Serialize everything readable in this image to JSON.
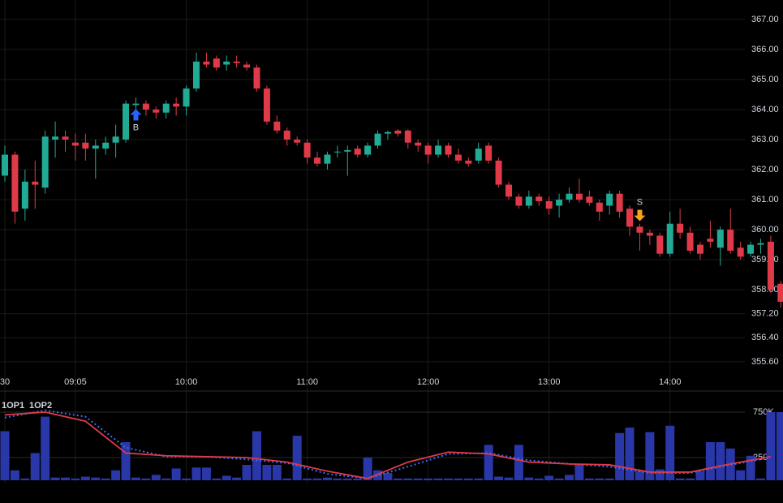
{
  "chart_data": [
    {
      "type": "candlestick",
      "categories": [
        "30",
        null,
        null,
        null,
        null,
        null,
        null,
        "09:05",
        null,
        null,
        null,
        null,
        null,
        null,
        null,
        null,
        null,
        null,
        "10:00",
        null,
        null,
        null,
        null,
        null,
        null,
        null,
        null,
        null,
        null,
        null,
        "11:00",
        null,
        null,
        null,
        null,
        null,
        null,
        null,
        null,
        null,
        null,
        null,
        "12:00",
        null,
        null,
        null,
        null,
        null,
        null,
        null,
        null,
        null,
        null,
        null,
        "13:00",
        null,
        null,
        null,
        null,
        null,
        null,
        null,
        null,
        null,
        null,
        null,
        "14:00",
        null,
        null,
        null,
        null,
        null,
        null,
        null,
        null,
        null,
        null,
        null
      ],
      "open": [
        361.8,
        362.5,
        360.7,
        361.6,
        361.4,
        363.0,
        363.1,
        362.9,
        362.9,
        362.7,
        362.7,
        362.9,
        363.0,
        364.15,
        364.2,
        364.0,
        363.9,
        364.2,
        364.1,
        364.7,
        365.6,
        365.7,
        365.5,
        365.6,
        365.5,
        365.4,
        364.7,
        363.6,
        363.3,
        363.0,
        362.9,
        362.4,
        362.2,
        362.6,
        362.6,
        362.7,
        362.5,
        362.8,
        363.2,
        363.3,
        363.3,
        362.9,
        362.8,
        362.5,
        362.8,
        362.5,
        362.3,
        362.3,
        362.8,
        362.3,
        361.5,
        361.1,
        360.8,
        361.1,
        360.95,
        360.8,
        361.0,
        361.2,
        361.1,
        360.9,
        360.8,
        361.2,
        360.7,
        360.1,
        359.9,
        359.8,
        359.2,
        360.2,
        359.9,
        359.5,
        359.7,
        359.4,
        360.0,
        359.4,
        359.2,
        359.5,
        359.6,
        358.2
      ],
      "high": [
        362.8,
        362.6,
        362.0,
        362.3,
        363.3,
        363.6,
        363.3,
        363.2,
        363.2,
        363.0,
        363.1,
        363.5,
        364.3,
        364.4,
        364.3,
        364.1,
        364.3,
        364.4,
        364.8,
        365.9,
        365.9,
        365.8,
        365.8,
        365.8,
        365.6,
        365.5,
        364.8,
        363.8,
        363.4,
        363.1,
        363.0,
        362.6,
        362.6,
        362.8,
        362.8,
        362.8,
        362.9,
        363.3,
        363.3,
        363.35,
        363.35,
        363.0,
        362.9,
        363.0,
        362.9,
        362.7,
        362.4,
        362.9,
        362.9,
        362.4,
        361.6,
        361.2,
        361.3,
        361.2,
        361.1,
        361.2,
        361.4,
        361.7,
        361.3,
        361.0,
        361.3,
        361.3,
        360.8,
        360.2,
        360.0,
        359.9,
        360.6,
        360.7,
        360.1,
        359.6,
        360.3,
        360.1,
        360.7,
        359.6,
        359.6,
        359.7,
        359.8,
        358.3
      ],
      "low": [
        361.6,
        360.2,
        360.3,
        360.7,
        361.2,
        362.4,
        362.6,
        362.3,
        362.3,
        361.7,
        362.5,
        362.4,
        362.9,
        364.0,
        363.8,
        363.7,
        363.7,
        363.8,
        363.8,
        364.6,
        365.4,
        365.3,
        365.3,
        365.4,
        365.3,
        364.6,
        363.5,
        363.2,
        362.8,
        362.8,
        362.2,
        362.1,
        362.0,
        362.4,
        361.8,
        362.4,
        362.4,
        362.7,
        363.0,
        363.1,
        362.7,
        362.6,
        362.2,
        362.4,
        362.4,
        362.2,
        362.1,
        362.2,
        362.2,
        361.4,
        361.0,
        360.7,
        360.7,
        360.8,
        360.5,
        360.4,
        360.9,
        360.9,
        360.8,
        360.3,
        360.5,
        360.4,
        359.8,
        359.3,
        359.5,
        359.1,
        359.1,
        359.7,
        359.2,
        359.0,
        359.4,
        358.8,
        359.2,
        359.0,
        359.1,
        359.2,
        357.9,
        357.4
      ],
      "close": [
        362.5,
        360.6,
        361.6,
        361.5,
        363.1,
        363.1,
        363.0,
        362.8,
        362.7,
        362.8,
        362.9,
        363.1,
        364.2,
        364.2,
        364.0,
        363.9,
        364.2,
        364.1,
        364.7,
        365.6,
        365.5,
        365.4,
        365.6,
        365.55,
        365.4,
        364.7,
        363.6,
        363.3,
        363.0,
        362.9,
        362.4,
        362.2,
        362.5,
        362.6,
        362.65,
        362.5,
        362.8,
        363.2,
        363.25,
        363.2,
        362.9,
        362.8,
        362.5,
        362.8,
        362.5,
        362.3,
        362.2,
        362.7,
        362.3,
        361.5,
        361.1,
        360.8,
        361.1,
        360.95,
        360.7,
        361.0,
        361.2,
        361.0,
        360.9,
        360.6,
        361.2,
        360.6,
        360.1,
        359.9,
        359.8,
        359.2,
        360.2,
        359.9,
        359.3,
        359.2,
        359.6,
        360.0,
        359.3,
        359.1,
        359.5,
        359.55,
        358.0,
        357.6
      ],
      "up_color": "#22ab94",
      "down_color": "#e03a48",
      "ylim": [
        355.22,
        367.65
      ],
      "yticks": [
        {
          "value": 367,
          "label": "367.00"
        },
        {
          "value": 366,
          "label": "366.00"
        },
        {
          "value": 365,
          "label": "365.00"
        },
        {
          "value": 364,
          "label": "364.00"
        },
        {
          "value": 363,
          "label": "363.00"
        },
        {
          "value": 362,
          "label": "362.00"
        },
        {
          "value": 361,
          "label": "361.00"
        },
        {
          "value": 360,
          "label": "360.00"
        },
        {
          "value": 359,
          "label": "359.00"
        },
        {
          "value": 358,
          "label": "358.00"
        },
        {
          "value": 357.2,
          "label": "357.20"
        },
        {
          "value": 356.4,
          "label": "356.40"
        },
        {
          "value": 355.6,
          "label": "355.60"
        }
      ],
      "grid": true,
      "annotations": [
        {
          "text": "B",
          "x": 13,
          "y": 363.8,
          "color": "#2962ff",
          "direction": "up"
        },
        {
          "text": "S",
          "x": 63,
          "y": 360.5,
          "color": "#f7a21b",
          "direction": "down"
        }
      ]
    },
    {
      "type": "bar",
      "values": [
        540000,
        110000,
        20000,
        300000,
        700000,
        30000,
        30000,
        20000,
        40000,
        30000,
        20000,
        110000,
        420000,
        30000,
        20000,
        60000,
        20000,
        130000,
        20000,
        140000,
        140000,
        20000,
        50000,
        30000,
        170000,
        540000,
        170000,
        170000,
        20000,
        490000,
        20000,
        20000,
        30000,
        20000,
        20000,
        20000,
        250000,
        110000,
        80000,
        20000,
        20000,
        20000,
        20000,
        20000,
        20000,
        20000,
        20000,
        20000,
        390000,
        40000,
        30000,
        390000,
        30000,
        20000,
        50000,
        20000,
        60000,
        170000,
        20000,
        20000,
        20000,
        520000,
        580000,
        100000,
        530000,
        120000,
        600000,
        20000,
        20000,
        100000,
        420000,
        420000,
        350000,
        110000,
        270000,
        20000,
        750000,
        750000
      ],
      "color": "#2a37a8",
      "ylim": [
        0,
        1000000
      ],
      "yticks": [
        {
          "value": 250000,
          "label": "250K"
        },
        {
          "value": 750000,
          "label": "750K"
        }
      ],
      "series": [
        {
          "name": "1OP1",
          "color": "#3d6cf5",
          "style": "dotted",
          "x": [
            0,
            4,
            8,
            12,
            16,
            20,
            24,
            28,
            32,
            36,
            40,
            44,
            48,
            52,
            56,
            60,
            64,
            68,
            72,
            76
          ],
          "values": [
            690000,
            770000,
            700000,
            360000,
            260000,
            260000,
            230000,
            190000,
            70000,
            20000,
            150000,
            290000,
            300000,
            220000,
            180000,
            150000,
            80000,
            80000,
            170000,
            250000
          ]
        },
        {
          "name": "1OP2",
          "color": "#e03a48",
          "style": "solid",
          "x": [
            0,
            4,
            8,
            12,
            16,
            20,
            24,
            28,
            32,
            36,
            40,
            44,
            48,
            52,
            56,
            60,
            64,
            68,
            72,
            76
          ],
          "values": [
            720000,
            750000,
            650000,
            300000,
            270000,
            260000,
            250000,
            200000,
            100000,
            20000,
            200000,
            310000,
            290000,
            200000,
            180000,
            170000,
            90000,
            90000,
            180000,
            260000
          ]
        }
      ]
    }
  ]
}
